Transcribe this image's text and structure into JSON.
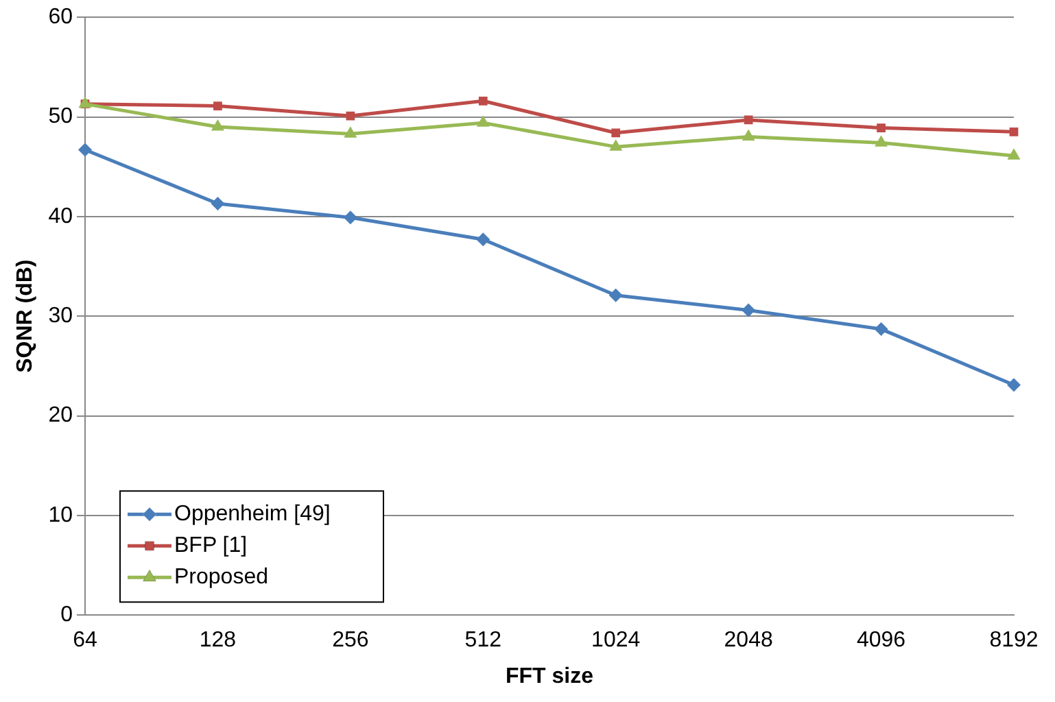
{
  "chart_data": {
    "type": "line",
    "xlabel": "FFT size",
    "ylabel": "SQNR (dB)",
    "categories": [
      "64",
      "128",
      "256",
      "512",
      "1024",
      "2048",
      "4096",
      "8192"
    ],
    "series": [
      {
        "name": "Oppenheim [49]",
        "color": "#4a7ebb",
        "marker": "diamond",
        "values": [
          46.7,
          41.3,
          39.9,
          37.7,
          32.1,
          30.6,
          28.7,
          23.1
        ]
      },
      {
        "name": "BFP [1]",
        "color": "#be4b48",
        "marker": "square",
        "values": [
          51.3,
          51.1,
          50.1,
          51.6,
          48.4,
          49.7,
          48.9,
          48.5
        ]
      },
      {
        "name": "Proposed",
        "color": "#98b954",
        "marker": "triangle",
        "values": [
          51.3,
          49.0,
          48.3,
          49.4,
          47.0,
          48.0,
          47.4,
          46.1
        ]
      }
    ],
    "ylim": [
      0,
      60
    ],
    "yticks": [
      0,
      10,
      20,
      30,
      40,
      50,
      60
    ],
    "grid": "y",
    "legend": "bottom left",
    "line_style": "solid"
  }
}
